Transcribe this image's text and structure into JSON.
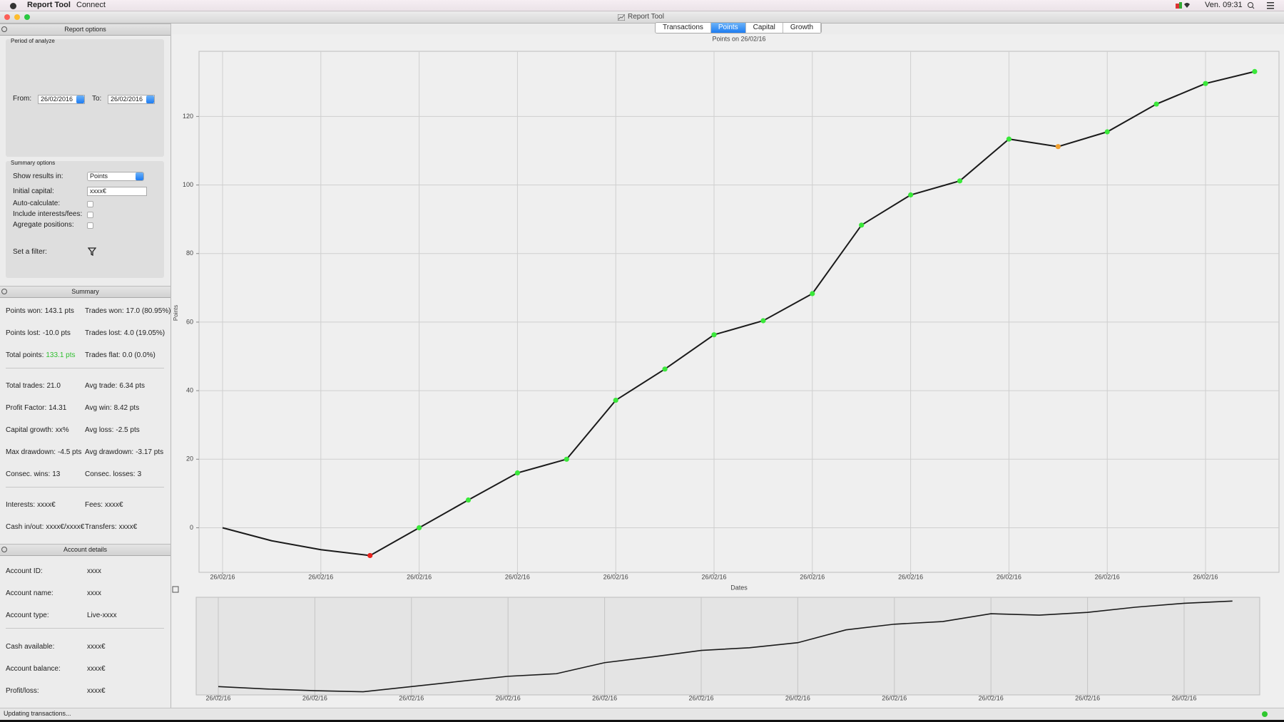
{
  "menubar": {
    "app": "Report Tool",
    "menu": "Connect",
    "clock": "Ven. 09:31"
  },
  "window": {
    "title": "Report Tool"
  },
  "tabs": [
    "Transactions",
    "Points",
    "Capital",
    "Growth"
  ],
  "active_tab": 1,
  "report_options": {
    "title": "Report options",
    "period_label": "Period of analyze",
    "from_label": "From:",
    "from": "26/02/2016",
    "to_label": "To:",
    "to": "26/02/2016",
    "summary_options_label": "Summary options",
    "show_results_label": "Show results in:",
    "show_results": "Points",
    "initial_capital_label": "Initial capital:",
    "initial_capital": "xxxx€",
    "checkboxes": [
      "Auto-calculate:",
      "Include interests/fees:",
      "Agregate positions:"
    ],
    "filter_label": "Set a filter:"
  },
  "summary": {
    "title": "Summary",
    "groups": [
      [
        [
          {
            "label": "Points won:",
            "value": "143.1 pts"
          },
          {
            "label": "Trades won:",
            "value": "17.0 (80.95%)"
          }
        ],
        [
          {
            "label": "Points lost:",
            "value": "-10.0 pts"
          },
          {
            "label": "Trades lost:",
            "value": "4.0 (19.05%)"
          }
        ],
        [
          {
            "label": "Total points:",
            "value": "133.1 pts",
            "color": "#2fbf2f"
          },
          {
            "label": "Trades flat:",
            "value": "0.0 (0.0%)"
          }
        ]
      ],
      [
        [
          {
            "label": "Total trades:",
            "value": "21.0"
          },
          {
            "label": "Avg trade:",
            "value": "6.34 pts"
          }
        ],
        [
          {
            "label": "Profit Factor:",
            "value": "14.31"
          },
          {
            "label": "Avg win:",
            "value": "8.42 pts"
          }
        ],
        [
          {
            "label": "Capital growth:",
            "value": "xx%"
          },
          {
            "label": "Avg loss:",
            "value": "-2.5 pts"
          }
        ],
        [
          {
            "label": "Max drawdown:",
            "value": "-4.5 pts"
          },
          {
            "label": "Avg drawdown:",
            "value": "-3.17 pts"
          }
        ],
        [
          {
            "label": "Consec. wins:",
            "value": "13"
          },
          {
            "label": "Consec. losses:",
            "value": "3"
          }
        ]
      ],
      [
        [
          {
            "label": "Interests:",
            "value": "xxxx€"
          },
          {
            "label": "Fees:",
            "value": "xxxx€"
          }
        ],
        [
          {
            "label": "Cash in/out:",
            "value": "xxxx€/xxxx€"
          },
          {
            "label": "Transfers:",
            "value": "xxxx€"
          }
        ]
      ]
    ]
  },
  "account_details": {
    "title": "Account details",
    "groups": [
      [
        [
          "Account ID:",
          "xxxx"
        ],
        [
          "Account name:",
          "xxxx"
        ],
        [
          "Account type:",
          "Live-xxxx"
        ]
      ],
      [
        [
          "Cash available:",
          "xxxx€"
        ],
        [
          "Account balance:",
          "xxxx€"
        ],
        [
          "Profit/loss:",
          "xxxx€"
        ]
      ]
    ]
  },
  "status": "Updating transactions...",
  "chart_data": {
    "type": "line",
    "title": "Points on 26/02/16",
    "x_label": "Dates",
    "y_label": "Points",
    "categories": [
      "26/02/16",
      null,
      "26/02/16",
      null,
      "26/02/16",
      null,
      "26/02/16",
      null,
      "26/02/16",
      null,
      "26/02/16",
      null,
      "26/02/16",
      null,
      "26/02/16",
      null,
      "26/02/16",
      null,
      "26/02/16",
      null,
      "26/02/16",
      null
    ],
    "values": [
      0,
      -3.8,
      -6.4,
      -8.1,
      0,
      8.1,
      16,
      20,
      37.2,
      46.3,
      56.3,
      60.4,
      68.3,
      88.3,
      97.1,
      101.2,
      113.4,
      111.2,
      115.5,
      123.6,
      129.6,
      133.1
    ],
    "color": "#1a1a1a",
    "marker_colors": [
      null,
      null,
      null,
      "#e8231e",
      "#3ae83a",
      "#3ae83a",
      "#3ae83a",
      "#3ae83a",
      "#3ae83a",
      "#3ae83a",
      "#3ae83a",
      "#3ae83a",
      "#3ae83a",
      "#3ae83a",
      "#3ae83a",
      "#3ae83a",
      "#3ae83a",
      "#f0a030",
      "#3ae83a",
      "#3ae83a",
      "#3ae83a",
      "#3ae83a"
    ],
    "ylim": [
      -13,
      139
    ],
    "yticks": [
      0,
      20,
      40,
      60,
      80,
      100,
      120
    ],
    "grid": true
  }
}
